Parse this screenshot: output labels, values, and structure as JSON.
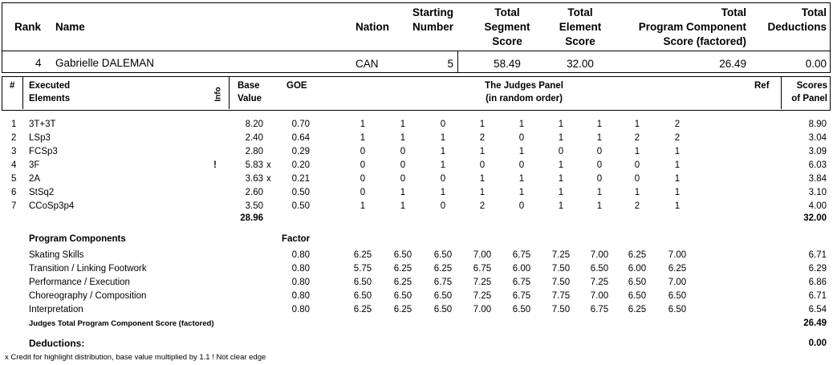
{
  "header": {
    "labels": {
      "rank": "Rank",
      "name": "Name",
      "nation": "Nation",
      "starting": [
        "Starting",
        "Number"
      ],
      "tss": [
        "Total",
        "Segment",
        "Score"
      ],
      "tes": [
        "Total",
        "Element",
        "Score"
      ],
      "pcs": [
        "Total",
        "Program Component",
        "Score (factored)"
      ],
      "ded": [
        "Total",
        "Deductions"
      ]
    },
    "values": {
      "rank": "4",
      "name": "Gabrielle DALEMAN",
      "nation": "CAN",
      "starting": "5",
      "tss": "58.49",
      "tes": "32.00",
      "pcs": "26.49",
      "ded": "0.00"
    }
  },
  "elements_header": {
    "num": "#",
    "executed": [
      "Executed",
      "Elements"
    ],
    "info": "Info",
    "base": [
      "Base",
      "Value"
    ],
    "goe": "GOE",
    "panel": [
      "The Judges Panel",
      "(in random order)"
    ],
    "ref": "Ref",
    "scores": [
      "Scores",
      "of Panel"
    ]
  },
  "elements": [
    {
      "n": "1",
      "name": "3T+3T",
      "info": "",
      "base": "8.20",
      "x": "",
      "goe": "0.70",
      "judges": [
        "1",
        "1",
        "0",
        "1",
        "1",
        "1",
        "1",
        "1",
        "2"
      ],
      "score": "8.90"
    },
    {
      "n": "2",
      "name": "LSp3",
      "info": "",
      "base": "2.40",
      "x": "",
      "goe": "0.64",
      "judges": [
        "1",
        "1",
        "1",
        "2",
        "0",
        "1",
        "1",
        "2",
        "2"
      ],
      "score": "3.04"
    },
    {
      "n": "3",
      "name": "FCSp3",
      "info": "",
      "base": "2.80",
      "x": "",
      "goe": "0.29",
      "judges": [
        "0",
        "0",
        "1",
        "1",
        "1",
        "0",
        "0",
        "1",
        "1"
      ],
      "score": "3.09"
    },
    {
      "n": "4",
      "name": "3F",
      "info": "!",
      "base": "5.83",
      "x": "x",
      "goe": "0.20",
      "judges": [
        "0",
        "0",
        "1",
        "0",
        "0",
        "1",
        "0",
        "0",
        "1"
      ],
      "score": "6.03"
    },
    {
      "n": "5",
      "name": "2A",
      "info": "",
      "base": "3.63",
      "x": "x",
      "goe": "0.21",
      "judges": [
        "0",
        "0",
        "0",
        "1",
        "1",
        "1",
        "0",
        "0",
        "1"
      ],
      "score": "3.84"
    },
    {
      "n": "6",
      "name": "StSq2",
      "info": "",
      "base": "2.60",
      "x": "",
      "goe": "0.50",
      "judges": [
        "0",
        "1",
        "1",
        "1",
        "1",
        "1",
        "1",
        "1",
        "1"
      ],
      "score": "3.10"
    },
    {
      "n": "7",
      "name": "CCoSp3p4",
      "info": "",
      "base": "3.50",
      "x": "",
      "goe": "0.50",
      "judges": [
        "1",
        "1",
        "0",
        "2",
        "0",
        "1",
        "1",
        "2",
        "1"
      ],
      "score": "4.00"
    }
  ],
  "base_total": "28.96",
  "elements_total": "32.00",
  "components_header": {
    "title": "Program Components",
    "factor": "Factor"
  },
  "components": [
    {
      "name": "Skating Skills",
      "factor": "0.80",
      "judges": [
        "6.25",
        "6.50",
        "6.50",
        "7.00",
        "6.75",
        "7.25",
        "7.00",
        "6.25",
        "7.00"
      ],
      "score": "6.71"
    },
    {
      "name": "Transition / Linking Footwork",
      "factor": "0.80",
      "judges": [
        "5.75",
        "6.25",
        "6.25",
        "6.75",
        "6.00",
        "7.50",
        "6.50",
        "6.00",
        "6.25"
      ],
      "score": "6.29"
    },
    {
      "name": "Performance / Execution",
      "factor": "0.80",
      "judges": [
        "6.50",
        "6.25",
        "6.75",
        "7.25",
        "6.75",
        "7.50",
        "7.25",
        "6.50",
        "7.00"
      ],
      "score": "6.86"
    },
    {
      "name": "Choreography / Composition",
      "factor": "0.80",
      "judges": [
        "6.50",
        "6.50",
        "6.50",
        "7.25",
        "6.75",
        "7.75",
        "7.00",
        "6.50",
        "6.50"
      ],
      "score": "6.71"
    },
    {
      "name": "Interpretation",
      "factor": "0.80",
      "judges": [
        "6.25",
        "6.25",
        "6.50",
        "7.00",
        "6.50",
        "7.50",
        "6.75",
        "6.25",
        "6.50"
      ],
      "score": "6.54"
    }
  ],
  "pcs_total_label": "Judges Total Program Component Score (factored)",
  "pcs_total": "26.49",
  "deductions_label": "Deductions:",
  "deductions_value": "0.00",
  "footnote": "x  Credit for highlight distribution, base value multiplied by 1.1   !  Not clear edge"
}
